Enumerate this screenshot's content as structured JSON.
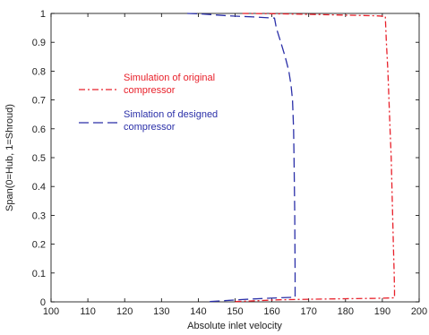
{
  "chart_data": {
    "type": "line",
    "title": "",
    "xlabel": "Absolute inlet velocity",
    "ylabel": "Span(0=Hub, 1=Shroud)",
    "xlim": [
      100,
      200
    ],
    "ylim": [
      0,
      1
    ],
    "xticks": [
      "100",
      "110",
      "120",
      "130",
      "140",
      "150",
      "160",
      "170",
      "180",
      "190",
      "200"
    ],
    "yticks": [
      "0",
      "0.1",
      "0.2",
      "0.3",
      "0.4",
      "0.5",
      "0.6",
      "0.7",
      "0.8",
      "0.9",
      "1"
    ],
    "grid": false,
    "legend_position": "upper-left",
    "series": [
      {
        "name": "Simulation of original compressor",
        "color": "#e8202a",
        "dash": "dash-dot",
        "points": [
          [
            152,
            1.0
          ],
          [
            160,
            0.999
          ],
          [
            170,
            0.997
          ],
          [
            180,
            0.994
          ],
          [
            188,
            0.992
          ],
          [
            190.8,
            0.99
          ],
          [
            191.1,
            0.9
          ],
          [
            191.5,
            0.8
          ],
          [
            191.8,
            0.7
          ],
          [
            192.1,
            0.6
          ],
          [
            192.4,
            0.5
          ],
          [
            192.6,
            0.4
          ],
          [
            192.8,
            0.3
          ],
          [
            193.0,
            0.2
          ],
          [
            193.2,
            0.1
          ],
          [
            193.3,
            0.04
          ],
          [
            193.3,
            0.014
          ],
          [
            188,
            0.012
          ],
          [
            180,
            0.011
          ],
          [
            170,
            0.009
          ],
          [
            162,
            0.007
          ],
          [
            156,
            0.004
          ],
          [
            150,
            0.001
          ]
        ]
      },
      {
        "name": "Simlation of designed compressor",
        "color": "#2a2fa8",
        "dash": "long-dash",
        "points": [
          [
            137,
            1.0
          ],
          [
            141,
            0.998
          ],
          [
            148,
            0.992
          ],
          [
            155,
            0.988
          ],
          [
            160.7,
            0.984
          ],
          [
            161.2,
            0.95
          ],
          [
            162.4,
            0.9
          ],
          [
            163.6,
            0.85
          ],
          [
            164.6,
            0.8
          ],
          [
            165.2,
            0.75
          ],
          [
            165.6,
            0.7
          ],
          [
            165.9,
            0.6
          ],
          [
            166.0,
            0.5
          ],
          [
            166.1,
            0.4
          ],
          [
            166.2,
            0.3
          ],
          [
            166.25,
            0.2
          ],
          [
            166.3,
            0.1
          ],
          [
            166.3,
            0.04
          ],
          [
            166.3,
            0.016
          ],
          [
            162,
            0.014
          ],
          [
            158,
            0.012
          ],
          [
            152,
            0.008
          ],
          [
            147,
            0.004
          ],
          [
            143,
            0.001
          ]
        ]
      }
    ]
  }
}
